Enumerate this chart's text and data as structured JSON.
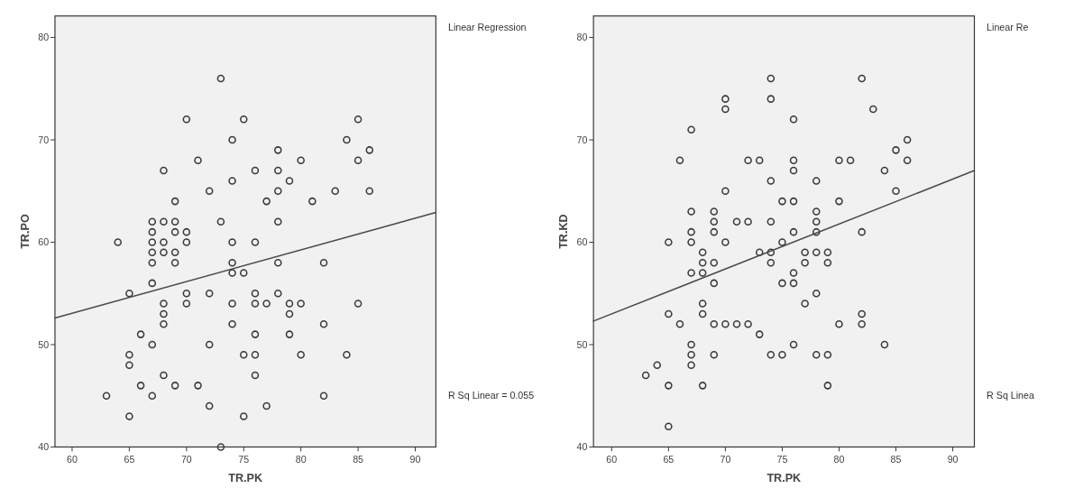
{
  "chart_data": [
    {
      "type": "scatter",
      "xlabel": "TR.PK",
      "ylabel": "TR.PO",
      "xlim": [
        58.5,
        91.8
      ],
      "ylim": [
        40,
        82.1
      ],
      "xticks": [
        60,
        65,
        70,
        75,
        80,
        85,
        90
      ],
      "yticks": [
        40,
        50,
        60,
        70,
        80
      ],
      "grid": false,
      "annotations": [
        "Linear Regression",
        "R Sq Linear = 0.055"
      ],
      "series": [
        {
          "type": "scatter",
          "color": "#3a3a3a",
          "marker": "circle",
          "x": [
            73,
            70,
            75,
            74,
            71,
            68,
            74,
            72,
            69,
            67,
            68,
            69,
            73,
            67,
            69,
            70,
            64,
            67,
            68,
            70,
            74,
            67,
            68,
            69,
            67,
            69,
            74,
            74,
            75,
            67,
            65,
            70,
            72,
            68,
            70,
            74,
            68,
            68,
            74,
            66,
            67,
            72,
            65,
            75,
            65,
            68,
            66,
            69,
            71,
            63,
            67,
            72,
            65,
            75,
            73,
            85,
            84,
            78,
            86,
            80,
            85,
            76,
            78,
            79,
            78,
            83,
            86,
            77,
            81,
            78,
            76,
            78,
            82,
            76,
            78,
            76,
            77,
            79,
            80,
            85,
            79,
            82,
            76,
            79,
            76,
            80,
            84,
            76,
            82,
            77
          ],
          "values": [
            76,
            72,
            72,
            70,
            68,
            67,
            66,
            65,
            64,
            62,
            62,
            62,
            62,
            61,
            61,
            61,
            60,
            60,
            60,
            60,
            60,
            59,
            59,
            59,
            58,
            58,
            58,
            57,
            57,
            56,
            55,
            55,
            55,
            54,
            54,
            54,
            53,
            52,
            52,
            51,
            50,
            50,
            49,
            49,
            48,
            47,
            46,
            46,
            46,
            45,
            45,
            44,
            43,
            43,
            40,
            72,
            70,
            69,
            69,
            68,
            68,
            67,
            67,
            66,
            65,
            65,
            65,
            64,
            64,
            62,
            60,
            58,
            58,
            55,
            55,
            54,
            54,
            54,
            54,
            54,
            53,
            52,
            51,
            51,
            49,
            49,
            49,
            47,
            45,
            44
          ]
        },
        {
          "type": "line",
          "color": "#4a4a4a",
          "marker": "none",
          "line_style": "solid",
          "x": [
            58.5,
            91.8
          ],
          "values": [
            52.6,
            62.9
          ]
        }
      ]
    },
    {
      "type": "scatter",
      "xlabel": "TR.PK",
      "ylabel": "TR.KD",
      "xlim": [
        58.4,
        91.9
      ],
      "ylim": [
        40,
        82.1
      ],
      "xticks": [
        60,
        65,
        70,
        75,
        80,
        85,
        90
      ],
      "yticks": [
        40,
        50,
        60,
        70,
        80
      ],
      "grid": false,
      "annotations": [
        "Linear Re",
        "R Sq Linea"
      ],
      "series": [
        {
          "type": "scatter",
          "color": "#3a3a3a",
          "marker": "circle",
          "x": [
            70,
            70,
            67,
            66,
            72,
            70,
            67,
            69,
            71,
            72,
            69,
            67,
            69,
            65,
            67,
            70,
            68,
            68,
            69,
            67,
            68,
            69,
            68,
            65,
            68,
            66,
            69,
            70,
            71,
            72,
            67,
            67,
            69,
            64,
            67,
            63,
            65,
            68,
            65,
            74,
            82,
            74,
            83,
            76,
            86,
            85,
            73,
            76,
            80,
            81,
            86,
            76,
            84,
            74,
            78,
            85,
            75,
            76,
            80,
            78,
            74,
            78,
            76,
            78,
            82,
            75,
            73,
            74,
            77,
            78,
            79,
            74,
            77,
            79,
            76,
            75,
            76,
            78,
            77,
            82,
            80,
            82,
            73,
            76,
            84,
            74,
            75,
            78,
            79,
            79
          ],
          "values": [
            74,
            73,
            71,
            68,
            68,
            65,
            63,
            63,
            62,
            62,
            62,
            61,
            61,
            60,
            60,
            60,
            59,
            58,
            58,
            57,
            57,
            56,
            54,
            53,
            53,
            52,
            52,
            52,
            52,
            52,
            50,
            49,
            49,
            48,
            48,
            47,
            46,
            46,
            42,
            76,
            76,
            74,
            73,
            72,
            70,
            69,
            68,
            68,
            68,
            68,
            68,
            67,
            67,
            66,
            66,
            65,
            64,
            64,
            64,
            63,
            62,
            62,
            61,
            61,
            61,
            60,
            59,
            59,
            59,
            59,
            59,
            58,
            58,
            58,
            57,
            56,
            56,
            55,
            54,
            53,
            52,
            52,
            51,
            50,
            50,
            49,
            49,
            49,
            49,
            46
          ]
        },
        {
          "type": "line",
          "color": "#4a4a4a",
          "marker": "none",
          "line_style": "solid",
          "x": [
            58.4,
            91.9
          ],
          "values": [
            52.3,
            67.0
          ]
        }
      ]
    }
  ]
}
